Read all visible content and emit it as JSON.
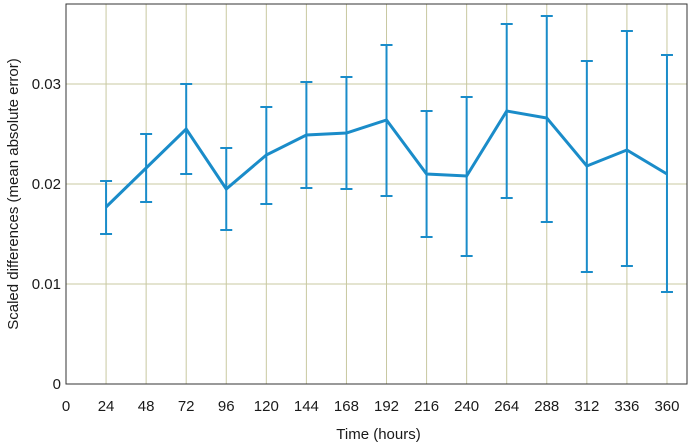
{
  "chart_data": {
    "type": "line",
    "title": "",
    "xlabel": "Time (hours)",
    "ylabel": "Scaled differences (mean absolute error)",
    "xlim": [
      0,
      372
    ],
    "ylim": [
      0,
      0.038
    ],
    "x_ticks": [
      0,
      24,
      48,
      72,
      96,
      120,
      144,
      168,
      192,
      216,
      240,
      264,
      288,
      312,
      336,
      360
    ],
    "y_ticks": [
      0,
      0.01,
      0.02,
      0.03
    ],
    "y_tick_labels": [
      "0",
      "0.01",
      "0.02",
      "0.03"
    ],
    "grid": "on",
    "colors": {
      "line": "#1a8cc9",
      "grid": "#c8c8a0",
      "frame": "#333333"
    },
    "series": [
      {
        "x": [
          24,
          48,
          72,
          96,
          120,
          144,
          168,
          192,
          216,
          240,
          264,
          288,
          312,
          336,
          360
        ],
        "y": [
          0.0177,
          0.0216,
          0.0255,
          0.0195,
          0.0229,
          0.0249,
          0.0251,
          0.0264,
          0.021,
          0.0208,
          0.0273,
          0.0266,
          0.0218,
          0.0234,
          0.021
        ],
        "err_low": [
          0.015,
          0.0182,
          0.021,
          0.0154,
          0.018,
          0.0196,
          0.0195,
          0.0188,
          0.0147,
          0.0128,
          0.0186,
          0.0162,
          0.0112,
          0.0118,
          0.0092
        ],
        "err_high": [
          0.0203,
          0.025,
          0.03,
          0.0236,
          0.0277,
          0.0302,
          0.0307,
          0.0339,
          0.0273,
          0.0287,
          0.036,
          0.0368,
          0.0323,
          0.0353,
          0.0329
        ]
      }
    ]
  }
}
